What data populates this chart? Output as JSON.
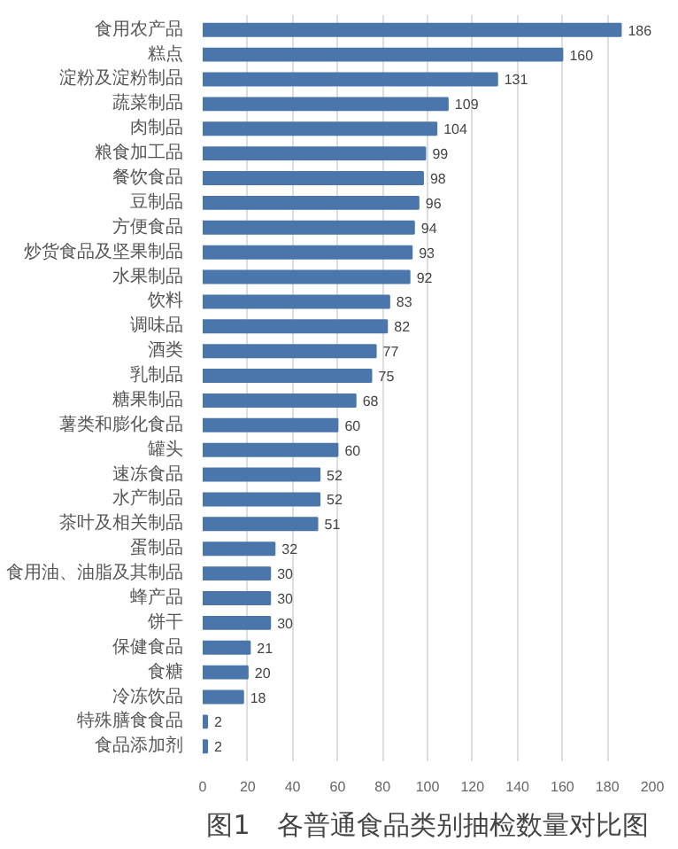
{
  "chart_data": {
    "type": "bar",
    "orientation": "horizontal",
    "title": "图1　各普通食品类别抽检数量对比图",
    "categories": [
      "食用农产品",
      "糕点",
      "淀粉及淀粉制品",
      "蔬菜制品",
      "肉制品",
      "粮食加工品",
      "餐饮食品",
      "豆制品",
      "方便食品",
      "炒货食品及坚果制品",
      "水果制品",
      "饮料",
      "调味品",
      "酒类",
      "乳制品",
      "糖果制品",
      "薯类和膨化食品",
      "罐头",
      "速冻食品",
      "水产制品",
      "茶叶及相关制品",
      "蛋制品",
      "食用油、油脂及其制品",
      "蜂产品",
      "饼干",
      "保健食品",
      "食糖",
      "冷冻饮品",
      "特殊膳食食品",
      "食品添加剂"
    ],
    "values": [
      186,
      160,
      131,
      109,
      104,
      99,
      98,
      96,
      94,
      93,
      92,
      83,
      82,
      77,
      75,
      68,
      60,
      60,
      52,
      52,
      51,
      32,
      30,
      30,
      30,
      21,
      20,
      18,
      2,
      2
    ],
    "color": "#4a76ab",
    "xlim": [
      0,
      200
    ],
    "xticks": [
      0,
      20,
      40,
      60,
      80,
      100,
      120,
      140,
      160,
      180,
      200
    ],
    "grid": "x",
    "data_labels": true
  }
}
